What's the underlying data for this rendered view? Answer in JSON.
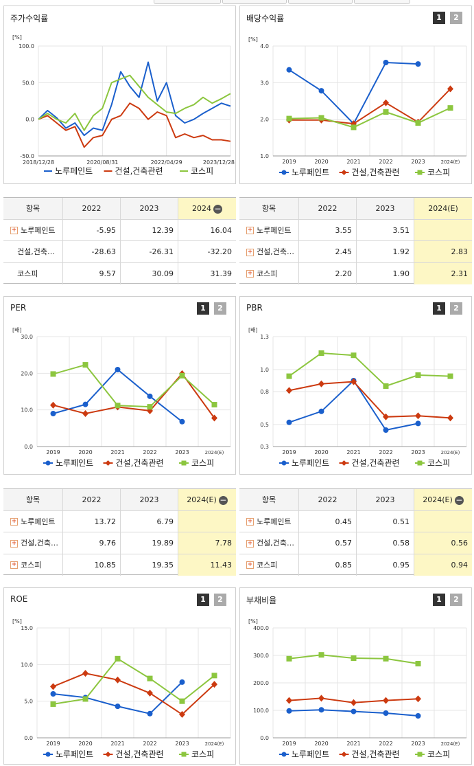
{
  "colors": {
    "company": "#1a5fcc",
    "industry": "#cc3a10",
    "kospi": "#8cc63f"
  },
  "legend": [
    "노루페인트",
    "건설,건축관련",
    "코스피"
  ],
  "panels": {
    "stock_return": {
      "title": "주가수익률",
      "unit": "[%]",
      "yticks": [
        "100.0",
        "50.0",
        "0.0",
        "-50.0"
      ],
      "xticks": [
        "2018/12/28",
        "2020/08/31",
        "2022/04/29",
        "2023/12/28"
      ]
    },
    "dividend": {
      "title": "배당수익률",
      "unit": "[%]",
      "btn1": "1",
      "btn2": "2",
      "yticks": [
        "4.0",
        "3.0",
        "2.0",
        "1.0"
      ],
      "xticks": [
        "2019",
        "2020",
        "2021",
        "2022",
        "2023",
        "2024(E)"
      ]
    },
    "per": {
      "title": "PER",
      "unit": "[배]",
      "btn1": "1",
      "btn2": "2",
      "yticks": [
        "30.0",
        "20.0",
        "10.0",
        "0.0"
      ],
      "xticks": [
        "2019",
        "2020",
        "2021",
        "2022",
        "2023",
        "2024(E)"
      ]
    },
    "pbr": {
      "title": "PBR",
      "unit": "[배]",
      "btn1": "1",
      "btn2": "2",
      "yticks": [
        "1.3",
        "1.0",
        "0.8",
        "0.5",
        "0.3"
      ],
      "xticks": [
        "2019",
        "2020",
        "2021",
        "2022",
        "2023",
        "2024(E)"
      ]
    },
    "roe": {
      "title": "ROE",
      "unit": "[%]",
      "btn1": "1",
      "btn2": "2",
      "yticks": [
        "15.0",
        "10.0",
        "5.0",
        "0.0"
      ],
      "xticks": [
        "2019",
        "2020",
        "2021",
        "2022",
        "2023",
        "2024(E)"
      ]
    },
    "debt": {
      "title": "부채비율",
      "unit": "[%]",
      "btn1": "1",
      "btn2": "2",
      "yticks": [
        "400.0",
        "300.0",
        "200.0",
        "100.0",
        "0.0"
      ],
      "xticks": [
        "2019",
        "2020",
        "2021",
        "2022",
        "2023",
        "2024(E)"
      ]
    }
  },
  "tables": {
    "stock_return": {
      "header": [
        "항목",
        "2022",
        "2023",
        "2024"
      ],
      "rows": [
        {
          "label": "노루페인트",
          "plus": true,
          "values": [
            "-5.95",
            "12.39",
            "16.04"
          ]
        },
        {
          "label": "건설,건축…",
          "plus": false,
          "values": [
            "-28.63",
            "-26.31",
            "-32.20"
          ]
        },
        {
          "label": "코스피",
          "plus": false,
          "values": [
            "9.57",
            "30.09",
            "31.39"
          ]
        }
      ]
    },
    "dividend": {
      "header": [
        "항목",
        "2022",
        "2023",
        "2024(E)"
      ],
      "rows": [
        {
          "label": "노루페인트",
          "plus": true,
          "values": [
            "3.55",
            "3.51",
            ""
          ]
        },
        {
          "label": "건설,건축…",
          "plus": true,
          "values": [
            "2.45",
            "1.92",
            "2.83"
          ]
        },
        {
          "label": "코스피",
          "plus": true,
          "values": [
            "2.20",
            "1.90",
            "2.31"
          ]
        }
      ]
    },
    "per": {
      "header": [
        "항목",
        "2022",
        "2023",
        "2024(E)"
      ],
      "rows": [
        {
          "label": "노루페인트",
          "plus": true,
          "values": [
            "13.72",
            "6.79",
            ""
          ]
        },
        {
          "label": "건설,건축…",
          "plus": true,
          "values": [
            "9.76",
            "19.89",
            "7.78"
          ]
        },
        {
          "label": "코스피",
          "plus": true,
          "values": [
            "10.85",
            "19.35",
            "11.43"
          ]
        }
      ]
    },
    "pbr": {
      "header": [
        "항목",
        "2022",
        "2023",
        "2024(E)"
      ],
      "rows": [
        {
          "label": "노루페인트",
          "plus": true,
          "values": [
            "0.45",
            "0.51",
            ""
          ]
        },
        {
          "label": "건설,건축…",
          "plus": true,
          "values": [
            "0.57",
            "0.58",
            "0.56"
          ]
        },
        {
          "label": "코스피",
          "plus": true,
          "values": [
            "0.85",
            "0.95",
            "0.94"
          ]
        }
      ]
    }
  },
  "chart_data": [
    {
      "id": "stock_return",
      "type": "line",
      "title": "주가수익률",
      "ylabel": "[%]",
      "ylim": [
        -50,
        100
      ],
      "x": [
        "2018/12/28",
        "2019/03",
        "2019/06",
        "2019/09",
        "2019/12",
        "2020/03",
        "2020/06",
        "2020/08/31",
        "2020/12",
        "2021/03",
        "2021/06",
        "2021/09",
        "2021/12",
        "2022/02",
        "2022/04/29",
        "2022/07",
        "2022/10",
        "2023/01",
        "2023/04",
        "2023/07",
        "2023/10",
        "2023/12/28"
      ],
      "series": [
        {
          "name": "노루페인트",
          "values": [
            0,
            12,
            2,
            -12,
            -5,
            -22,
            -12,
            -15,
            20,
            65,
            45,
            30,
            78,
            25,
            50,
            5,
            -5,
            0,
            8,
            15,
            22,
            18
          ]
        },
        {
          "name": "건설,건축관련",
          "values": [
            0,
            5,
            -5,
            -15,
            -10,
            -38,
            -25,
            -22,
            0,
            5,
            22,
            15,
            0,
            10,
            5,
            -25,
            -20,
            -25,
            -22,
            -28,
            -28,
            -30
          ]
        },
        {
          "name": "코스피",
          "values": [
            0,
            8,
            0,
            -5,
            8,
            -15,
            5,
            15,
            50,
            55,
            60,
            45,
            30,
            20,
            10,
            8,
            15,
            20,
            30,
            22,
            28,
            35
          ]
        }
      ]
    },
    {
      "id": "dividend",
      "type": "line",
      "title": "배당수익률",
      "ylabel": "[%]",
      "ylim": [
        1.0,
        4.0
      ],
      "categories": [
        "2019",
        "2020",
        "2021",
        "2022",
        "2023",
        "2024(E)"
      ],
      "series": [
        {
          "name": "노루페인트",
          "values": [
            3.35,
            2.78,
            1.88,
            3.55,
            3.51,
            null
          ]
        },
        {
          "name": "건설,건축관련",
          "values": [
            1.98,
            1.98,
            1.88,
            2.45,
            1.92,
            2.83
          ]
        },
        {
          "name": "코스피",
          "values": [
            2.02,
            2.04,
            1.78,
            2.2,
            1.9,
            2.31
          ]
        }
      ]
    },
    {
      "id": "per",
      "type": "line",
      "title": "PER",
      "ylabel": "[배]",
      "ylim": [
        0,
        30
      ],
      "categories": [
        "2019",
        "2020",
        "2021",
        "2022",
        "2023",
        "2024(E)"
      ],
      "series": [
        {
          "name": "노루페인트",
          "values": [
            9.0,
            11.5,
            21.0,
            13.72,
            6.79,
            null
          ]
        },
        {
          "name": "건설,건축관련",
          "values": [
            11.3,
            9.0,
            10.8,
            9.76,
            19.89,
            7.78
          ]
        },
        {
          "name": "코스피",
          "values": [
            19.8,
            22.3,
            11.2,
            10.85,
            19.35,
            11.43
          ]
        }
      ]
    },
    {
      "id": "pbr",
      "type": "line",
      "title": "PBR",
      "ylabel": "[배]",
      "ylim": [
        0.3,
        1.3
      ],
      "categories": [
        "2019",
        "2020",
        "2021",
        "2022",
        "2023",
        "2024(E)"
      ],
      "series": [
        {
          "name": "노루페인트",
          "values": [
            0.52,
            0.62,
            0.9,
            0.45,
            0.51,
            null
          ]
        },
        {
          "name": "건설,건축관련",
          "values": [
            0.81,
            0.87,
            0.89,
            0.57,
            0.58,
            0.56
          ]
        },
        {
          "name": "코스피",
          "values": [
            0.94,
            1.15,
            1.13,
            0.85,
            0.95,
            0.94
          ]
        }
      ]
    },
    {
      "id": "roe",
      "type": "line",
      "title": "ROE",
      "ylabel": "[%]",
      "ylim": [
        0,
        15
      ],
      "categories": [
        "2019",
        "2020",
        "2021",
        "2022",
        "2023",
        "2024(E)"
      ],
      "series": [
        {
          "name": "노루페인트",
          "values": [
            6.0,
            5.5,
            4.3,
            3.3,
            7.6,
            null
          ]
        },
        {
          "name": "건설,건축관련",
          "values": [
            7.0,
            8.8,
            7.9,
            6.1,
            3.2,
            7.3
          ]
        },
        {
          "name": "코스피",
          "values": [
            4.6,
            5.3,
            10.8,
            8.1,
            5.0,
            8.5
          ]
        }
      ]
    },
    {
      "id": "debt",
      "type": "line",
      "title": "부채비율",
      "ylabel": "[%]",
      "ylim": [
        0,
        400
      ],
      "categories": [
        "2019",
        "2020",
        "2021",
        "2022",
        "2023",
        "2024(E)"
      ],
      "series": [
        {
          "name": "노루페인트",
          "values": [
            98,
            102,
            96,
            90,
            80,
            null
          ]
        },
        {
          "name": "건설,건축관련",
          "values": [
            136,
            144,
            128,
            136,
            142,
            null
          ]
        },
        {
          "name": "코스피",
          "values": [
            288,
            302,
            290,
            288,
            270,
            null
          ]
        }
      ]
    }
  ]
}
